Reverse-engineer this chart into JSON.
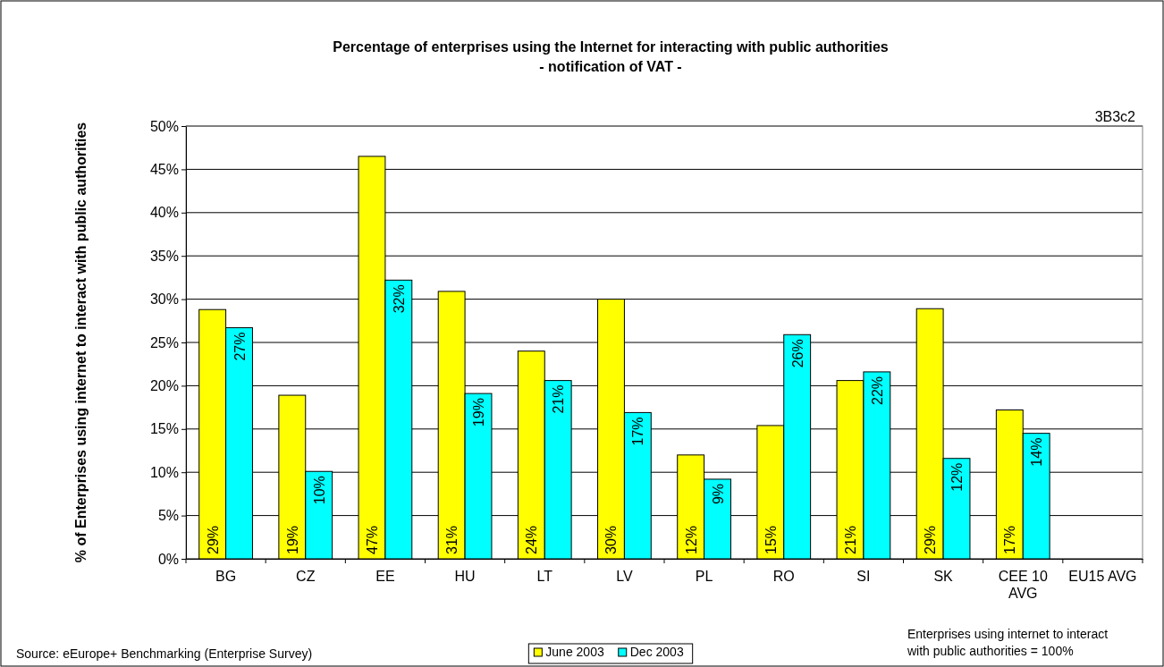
{
  "chart_data": {
    "type": "bar",
    "title": "Percentage of enterprises using the Internet for interacting with public authorities",
    "subtitle": "-  notification of VAT -",
    "ylabel": "% of Enterprises using internet to interact with public authorities",
    "categories": [
      "BG",
      "CZ",
      "EE",
      "HU",
      "LT",
      "LV",
      "PL",
      "RO",
      "SI",
      "SK",
      "CEE 10 AVG",
      "EU15 AVG"
    ],
    "series": [
      {
        "name": "June 2003",
        "color": "#ffff00",
        "values": [
          28.8,
          18.9,
          46.5,
          30.9,
          24.0,
          30.0,
          12.0,
          15.4,
          20.6,
          28.9,
          17.2,
          null
        ],
        "value_labels": [
          "29%",
          "19%",
          "47%",
          "31%",
          "24%",
          "30%",
          "12%",
          "15%",
          "21%",
          "29%",
          "17%",
          null
        ]
      },
      {
        "name": "Dec 2003",
        "color": "#00ffff",
        "values": [
          26.7,
          10.1,
          32.2,
          19.1,
          20.6,
          16.9,
          9.2,
          25.9,
          21.6,
          11.6,
          14.5,
          null
        ],
        "value_labels": [
          "27%",
          "10%",
          "32%",
          "19%",
          "21%",
          "17%",
          "9%",
          "26%",
          "22%",
          "12%",
          "14%",
          null
        ]
      }
    ],
    "ylim": [
      0,
      50
    ],
    "yticks": [
      {
        "value": 0,
        "label": "0%"
      },
      {
        "value": 5,
        "label": "5%"
      },
      {
        "value": 10,
        "label": "10%"
      },
      {
        "value": 15,
        "label": "15%"
      },
      {
        "value": 20,
        "label": "20%"
      },
      {
        "value": 25,
        "label": "25%"
      },
      {
        "value": 30,
        "label": "30%"
      },
      {
        "value": 35,
        "label": "35%"
      },
      {
        "value": 40,
        "label": "40%"
      },
      {
        "value": 45,
        "label": "45%"
      },
      {
        "value": 50,
        "label": "50%"
      }
    ],
    "grid": "y",
    "legend": "bottom",
    "annotations": [
      "3B3c2",
      "Source: eEurope+ Benchmarking (Enterprise Survey)",
      "Enterprises using internet to interact with public authorities = 100%"
    ]
  }
}
